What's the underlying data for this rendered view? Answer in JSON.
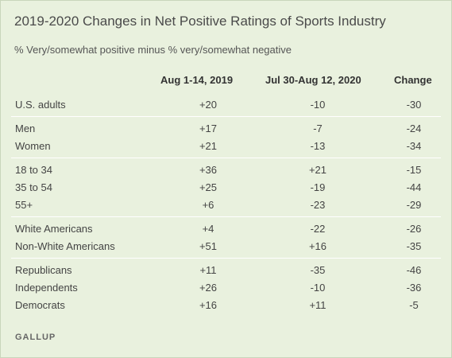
{
  "title": "2019-2020 Changes in Net Positive Ratings of Sports Industry",
  "subtitle": "% Very/somewhat positive minus % very/somewhat negative",
  "columns": [
    "Aug 1-14, 2019",
    "Jul 30-Aug 12, 2020",
    "Change"
  ],
  "groups": [
    {
      "rows": [
        {
          "label": "U.S. adults",
          "v1": "+20",
          "v2": "-10",
          "change": "-30"
        }
      ]
    },
    {
      "rows": [
        {
          "label": "Men",
          "v1": "+17",
          "v2": "-7",
          "change": "-24"
        },
        {
          "label": "Women",
          "v1": "+21",
          "v2": "-13",
          "change": "-34"
        }
      ]
    },
    {
      "rows": [
        {
          "label": "18 to 34",
          "v1": "+36",
          "v2": "+21",
          "change": "-15"
        },
        {
          "label": "35 to 54",
          "v1": "+25",
          "v2": "-19",
          "change": "-44"
        },
        {
          "label": "55+",
          "v1": "+6",
          "v2": "-23",
          "change": "-29"
        }
      ]
    },
    {
      "rows": [
        {
          "label": "White Americans",
          "v1": "+4",
          "v2": "-22",
          "change": "-26"
        },
        {
          "label": "Non-White Americans",
          "v1": "+51",
          "v2": "+16",
          "change": "-35"
        }
      ]
    },
    {
      "rows": [
        {
          "label": "Republicans",
          "v1": "+11",
          "v2": "-35",
          "change": "-46"
        },
        {
          "label": "Independents",
          "v1": "+26",
          "v2": "-10",
          "change": "-36"
        },
        {
          "label": "Democrats",
          "v1": "+16",
          "v2": "+11",
          "change": "-5"
        }
      ]
    }
  ],
  "footer": "GALLUP",
  "colors": {
    "background": "#e9f1de",
    "divider": "#ffffff"
  }
}
